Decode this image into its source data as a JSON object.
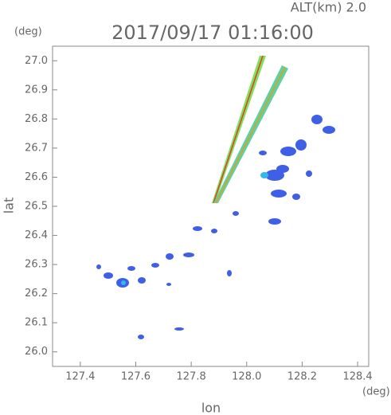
{
  "chart_data": {
    "type": "map",
    "title": "2017/09/17 01:16:00",
    "subtitle": "ALT(km) 2.0",
    "x_label": "lon",
    "y_label": "lat",
    "x_unit": "(deg)",
    "y_unit": "(deg)",
    "xlim": [
      127.3,
      128.44
    ],
    "ylim": [
      25.95,
      27.05
    ],
    "xticks": [
      127.4,
      127.6,
      127.8,
      {
        "value": 128,
        "label": "128.0"
      },
      128.2,
      128.4
    ],
    "yticks": [
      {
        "value": 26,
        "label": "26.0"
      },
      26.1,
      26.2,
      26.3,
      26.4,
      26.5,
      26.6,
      26.7,
      26.8,
      26.9,
      {
        "value": 27,
        "label": "27.0"
      }
    ]
  }
}
